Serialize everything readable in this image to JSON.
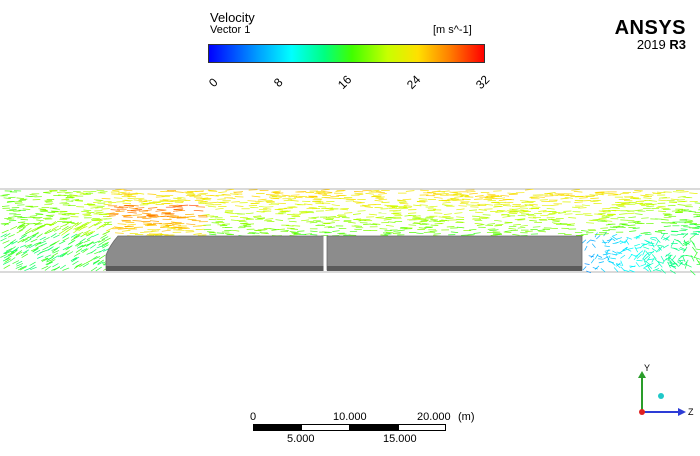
{
  "legend": {
    "title": "Velocity",
    "subtitle": "Vector 1",
    "units": "[m s^-1]",
    "ticks": [
      "0",
      "8",
      "16",
      "24",
      "32"
    ]
  },
  "logo": {
    "name": "ANSYS",
    "version_year": "2019",
    "version_release": "R3"
  },
  "scale": {
    "top_labels": [
      "0",
      "10.000",
      "20.000",
      "(m)"
    ],
    "bottom_labels": [
      "5.000",
      "15.000"
    ]
  },
  "axes": {
    "y": "Y",
    "z": "Z"
  },
  "colors": {
    "body_fill": "#8c8c8c",
    "body_dark": "#5a5a5a",
    "domain_line": "#b4b4b4"
  }
}
